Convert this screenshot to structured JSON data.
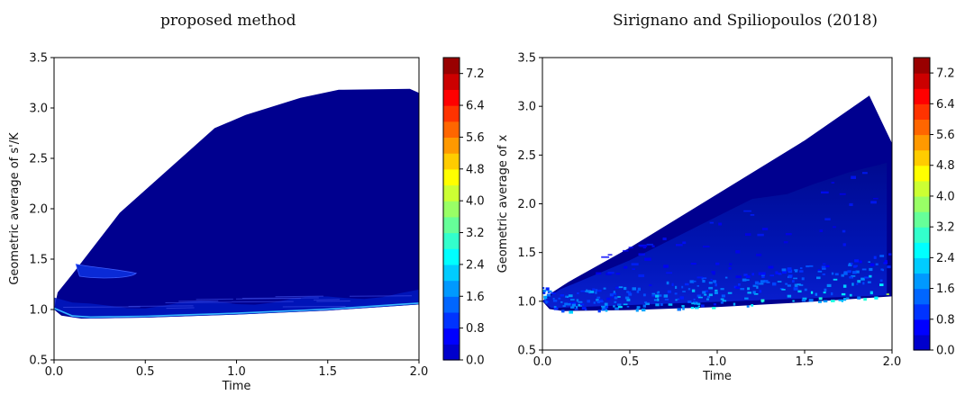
{
  "chart_data": [
    {
      "type": "heatmap",
      "title": "proposed method",
      "xlabel": "Time",
      "ylabel": "Geometric average of s'/K",
      "xlim": [
        0.0,
        2.0
      ],
      "ylim": [
        0.5,
        3.5
      ],
      "xticks": [
        "0.0",
        "0.5",
        "1.0",
        "1.5",
        "2.0"
      ],
      "yticks": [
        "0.5",
        "1.0",
        "1.5",
        "2.0",
        "2.5",
        "3.0",
        "3.5"
      ],
      "grid": false,
      "colormap": "jet",
      "colorbar": {
        "min": 0.0,
        "max": 7.6,
        "levels": 0.4,
        "ticks": [
          "0.0",
          "0.8",
          "1.6",
          "2.4",
          "3.2",
          "4.0",
          "4.8",
          "5.6",
          "6.4",
          "7.2"
        ]
      },
      "region_upper": [
        [
          0.0,
          1.0
        ],
        [
          0.02,
          1.17
        ],
        [
          0.1,
          1.35
        ],
        [
          0.36,
          1.96
        ],
        [
          0.88,
          2.8
        ],
        [
          1.05,
          2.93
        ],
        [
          1.35,
          3.1
        ],
        [
          1.56,
          3.18
        ],
        [
          1.95,
          3.19
        ],
        [
          2.0,
          3.15
        ]
      ],
      "region_lower": [
        [
          0.0,
          1.0
        ],
        [
          0.04,
          0.94
        ],
        [
          0.15,
          0.91
        ],
        [
          0.5,
          0.92
        ],
        [
          1.0,
          0.95
        ],
        [
          1.5,
          0.99
        ],
        [
          2.0,
          1.05
        ]
      ]
    },
    {
      "type": "heatmap",
      "title": "Sirignano and Spiliopoulos (2018)",
      "xlabel": "Time",
      "ylabel": "Geometric average of x",
      "xlim": [
        0.0,
        2.0
      ],
      "ylim": [
        0.5,
        3.5
      ],
      "xticks": [
        "0.0",
        "0.5",
        "1.0",
        "1.5",
        "2.0"
      ],
      "yticks": [
        "0.5",
        "1.0",
        "1.5",
        "2.0",
        "2.5",
        "3.0",
        "3.5"
      ],
      "grid": false,
      "colormap": "jet",
      "colorbar": {
        "min": 0.0,
        "max": 7.6,
        "levels": 0.4,
        "ticks": [
          "0.0",
          "0.8",
          "1.6",
          "2.4",
          "3.2",
          "4.0",
          "4.8",
          "5.6",
          "6.4",
          "7.2"
        ]
      },
      "region_upper": [
        [
          0.0,
          1.0
        ],
        [
          0.03,
          1.06
        ],
        [
          0.15,
          1.2
        ],
        [
          0.5,
          1.55
        ],
        [
          1.0,
          2.1
        ],
        [
          1.5,
          2.65
        ],
        [
          1.87,
          3.11
        ],
        [
          2.0,
          2.62
        ]
      ],
      "region_lower": [
        [
          0.0,
          1.0
        ],
        [
          0.04,
          0.92
        ],
        [
          0.12,
          0.9
        ],
        [
          0.5,
          0.91
        ],
        [
          1.0,
          0.94
        ],
        [
          1.5,
          0.99
        ],
        [
          2.0,
          1.05
        ]
      ]
    }
  ]
}
